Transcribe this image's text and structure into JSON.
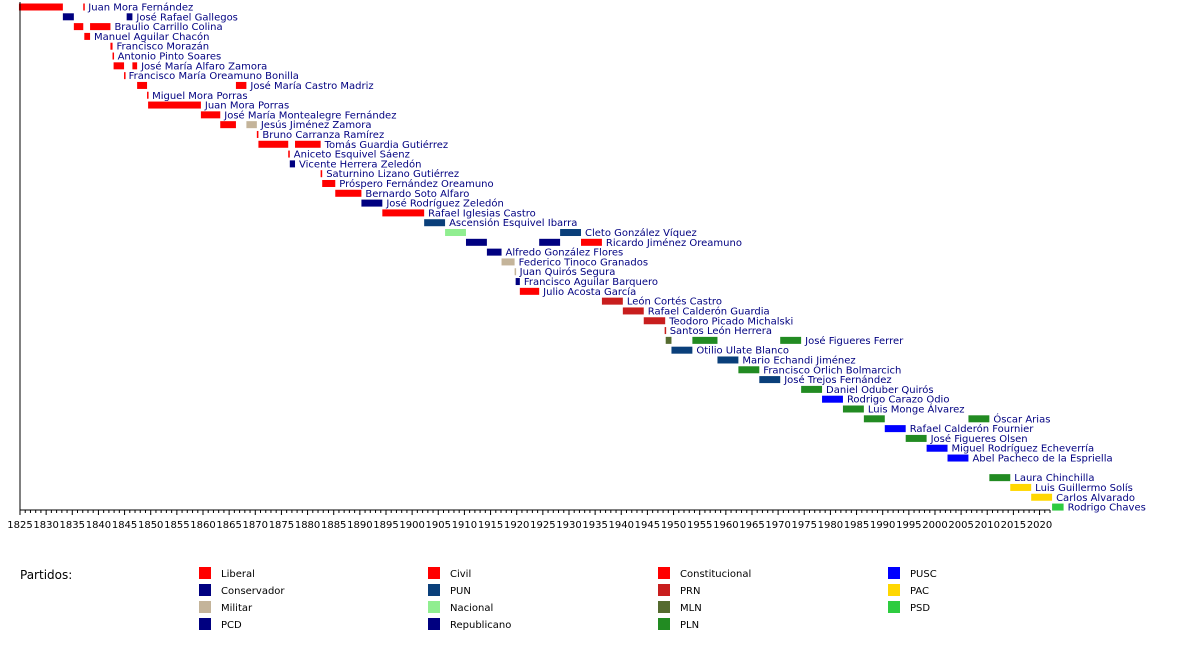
{
  "chart_data": {
    "type": "timeline",
    "x_axis": {
      "min": 1825,
      "max": 2022,
      "tick_labels": [
        "1825",
        "1830",
        "1835",
        "1840",
        "1845",
        "1850",
        "1855",
        "1860",
        "1865",
        "1870",
        "1875",
        "1880",
        "1885",
        "1890",
        "1895",
        "1900",
        "1905",
        "1910",
        "1915",
        "1920",
        "1925",
        "1930",
        "1935",
        "1940",
        "1945",
        "1950",
        "1955",
        "1960",
        "1965",
        "1970",
        "1975",
        "1980",
        "1985",
        "1990",
        "1995",
        "2000",
        "2005",
        "2010",
        "2015",
        "2020"
      ]
    },
    "legend_title": "Partidos:",
    "parties": [
      {
        "key": "liberal",
        "name": "Liberal",
        "color": "#ff0000"
      },
      {
        "key": "conservador",
        "name": "Conservador",
        "color": "#000080"
      },
      {
        "key": "militar",
        "name": "Militar",
        "color": "#c4b49a"
      },
      {
        "key": "pcd",
        "name": "PCD",
        "color": "#000080"
      },
      {
        "key": "civil",
        "name": "Civil",
        "color": "#ff0000"
      },
      {
        "key": "pun",
        "name": "PUN",
        "color": "#0a3f7a"
      },
      {
        "key": "nacional",
        "name": "Nacional",
        "color": "#90ee90"
      },
      {
        "key": "republicano",
        "name": "Republicano",
        "color": "#000080"
      },
      {
        "key": "constitucional",
        "name": "Constitucional",
        "color": "#ff0000"
      },
      {
        "key": "prn",
        "name": "PRN",
        "color": "#c81e1e"
      },
      {
        "key": "mln",
        "name": "MLN",
        "color": "#556b2f"
      },
      {
        "key": "pln",
        "name": "PLN",
        "color": "#228b22"
      },
      {
        "key": "pusc",
        "name": "PUSC",
        "color": "#0000ff"
      },
      {
        "key": "pac",
        "name": "PAC",
        "color": "#ffd700"
      },
      {
        "key": "psd",
        "name": "PSD",
        "color": "#2ecc40"
      }
    ],
    "rows": [
      {
        "label": "Juan Mora Fernández",
        "terms": [
          [
            1824.8,
            1833.2,
            "liberal"
          ],
          [
            1837.1,
            1837.3,
            "liberal"
          ]
        ]
      },
      {
        "label": "José Rafael Gallegos",
        "terms": [
          [
            1833.2,
            1835.3,
            "conservador"
          ],
          [
            1845.4,
            1846.5,
            "conservador"
          ]
        ]
      },
      {
        "label": "Braulio Carrillo Colina",
        "terms": [
          [
            1835.3,
            1837.1,
            "liberal"
          ],
          [
            1838.4,
            1842.3,
            "liberal"
          ]
        ]
      },
      {
        "label": "Manuel Aguilar Chacón",
        "terms": [
          [
            1837.3,
            1838.4,
            "liberal"
          ]
        ]
      },
      {
        "label": "Francisco Morazán",
        "terms": [
          [
            1842.3,
            1842.7,
            "liberal"
          ]
        ]
      },
      {
        "label": "Antonio Pinto Soares",
        "terms": [
          [
            1842.7,
            1842.9,
            "liberal"
          ]
        ]
      },
      {
        "label": "José María Alfaro Zamora",
        "terms": [
          [
            1842.9,
            1844.9,
            "liberal"
          ],
          [
            1846.5,
            1847.4,
            "liberal"
          ]
        ]
      },
      {
        "label": "Francisco María Oreamuno Bonilla",
        "terms": [
          [
            1844.9,
            1845.0,
            "liberal"
          ]
        ]
      },
      {
        "label": "José María Castro Madriz",
        "terms": [
          [
            1847.4,
            1849.3,
            "liberal"
          ],
          [
            1866.3,
            1868.3,
            "liberal"
          ]
        ]
      },
      {
        "label": "Miguel Mora Porras",
        "terms": [
          [
            1849.3,
            1849.5,
            "liberal"
          ]
        ]
      },
      {
        "label": "Juan Mora Porras",
        "terms": [
          [
            1849.5,
            1859.6,
            "liberal"
          ]
        ]
      },
      {
        "label": "José María Montealegre Fernández",
        "terms": [
          [
            1859.6,
            1863.3,
            "liberal"
          ]
        ]
      },
      {
        "label": "Jesús Jiménez Zamora",
        "terms": [
          [
            1863.3,
            1866.3,
            "liberal"
          ],
          [
            1868.3,
            1870.3,
            "militar"
          ]
        ]
      },
      {
        "label": "Bruno Carranza Ramírez",
        "terms": [
          [
            1870.3,
            1870.6,
            "liberal"
          ]
        ]
      },
      {
        "label": "Tomás Guardia Gutiérrez",
        "terms": [
          [
            1870.6,
            1876.3,
            "liberal"
          ],
          [
            1877.6,
            1882.5,
            "liberal"
          ]
        ]
      },
      {
        "label": "Aniceto Esquivel Sáenz",
        "terms": [
          [
            1876.3,
            1876.6,
            "liberal"
          ]
        ]
      },
      {
        "label": "Vicente Herrera Zeledón",
        "terms": [
          [
            1876.6,
            1877.6,
            "conservador"
          ]
        ]
      },
      {
        "label": "Saturnino Lizano Gutiérrez",
        "terms": [
          [
            1882.5,
            1882.8,
            "liberal"
          ]
        ]
      },
      {
        "label": "Próspero Fernández Oreamuno",
        "terms": [
          [
            1882.8,
            1885.3,
            "liberal"
          ]
        ]
      },
      {
        "label": "Bernardo Soto Alfaro",
        "terms": [
          [
            1885.3,
            1890.3,
            "liberal"
          ]
        ]
      },
      {
        "label": "José Rodríguez Zeledón",
        "terms": [
          [
            1890.3,
            1894.3,
            "conservador"
          ]
        ]
      },
      {
        "label": "Rafael Iglesias Castro",
        "terms": [
          [
            1894.3,
            1902.3,
            "civil"
          ]
        ]
      },
      {
        "label": "Ascensión Esquivel Ibarra",
        "terms": [
          [
            1902.3,
            1906.3,
            "pun"
          ]
        ]
      },
      {
        "label": "Cleto González Víquez",
        "terms": [
          [
            1906.3,
            1910.3,
            "nacional"
          ],
          [
            1928.3,
            1932.3,
            "pun"
          ]
        ]
      },
      {
        "label": "Ricardo Jiménez Oreamuno",
        "terms": [
          [
            1910.3,
            1914.3,
            "republicano"
          ],
          [
            1924.3,
            1928.3,
            "republicano"
          ],
          [
            1932.3,
            1936.3,
            "constitucional"
          ]
        ]
      },
      {
        "label": "Alfredo González Flores",
        "terms": [
          [
            1914.3,
            1917.1,
            "republicano"
          ]
        ]
      },
      {
        "label": "Federico Tinoco Granados",
        "terms": [
          [
            1917.1,
            1919.6,
            "militar"
          ]
        ]
      },
      {
        "label": "Juan Quirós Segura",
        "terms": [
          [
            1919.6,
            1919.8,
            "militar"
          ]
        ]
      },
      {
        "label": "Francisco Aguilar Barquero",
        "terms": [
          [
            1919.8,
            1920.6,
            "pcd"
          ]
        ]
      },
      {
        "label": "Julio Acosta García",
        "terms": [
          [
            1920.6,
            1924.3,
            "constitucional"
          ]
        ]
      },
      {
        "label": "León Cortés Castro",
        "terms": [
          [
            1936.3,
            1940.3,
            "prn"
          ]
        ]
      },
      {
        "label": "Rafael Calderón Guardia",
        "terms": [
          [
            1940.3,
            1944.3,
            "prn"
          ]
        ]
      },
      {
        "label": "Teodoro Picado Michalski",
        "terms": [
          [
            1944.3,
            1948.4,
            "prn"
          ]
        ]
      },
      {
        "label": "Santos León Herrera",
        "terms": [
          [
            1948.3,
            1948.5,
            "prn"
          ]
        ]
      },
      {
        "label": "José Figueres Ferrer",
        "terms": [
          [
            1948.5,
            1949.6,
            "mln"
          ],
          [
            1953.6,
            1958.4,
            "pln"
          ],
          [
            1970.4,
            1974.4,
            "pln"
          ]
        ]
      },
      {
        "label": "Otilio Ulate Blanco",
        "terms": [
          [
            1949.6,
            1953.6,
            "pun"
          ]
        ]
      },
      {
        "label": "Mario Echandi Jiménez",
        "terms": [
          [
            1958.4,
            1962.4,
            "pun"
          ]
        ]
      },
      {
        "label": "Francisco Orlich Bolmarcich",
        "terms": [
          [
            1962.4,
            1966.4,
            "pln"
          ]
        ]
      },
      {
        "label": "José Trejos Fernández",
        "terms": [
          [
            1966.4,
            1970.4,
            "pun"
          ]
        ]
      },
      {
        "label": "Daniel Oduber Quirós",
        "terms": [
          [
            1974.4,
            1978.4,
            "pln"
          ]
        ]
      },
      {
        "label": "Rodrigo Carazo Odio",
        "terms": [
          [
            1978.4,
            1982.4,
            "pusc"
          ]
        ]
      },
      {
        "label": "Luis Monge Álvarez",
        "terms": [
          [
            1982.4,
            1986.4,
            "pln"
          ]
        ]
      },
      {
        "label": "Óscar Arias",
        "terms": [
          [
            1986.4,
            1990.4,
            "pln"
          ],
          [
            2006.4,
            2010.4,
            "pln"
          ]
        ]
      },
      {
        "label": "Rafael Calderón Fournier",
        "terms": [
          [
            1990.4,
            1994.4,
            "pusc"
          ]
        ]
      },
      {
        "label": "José Figueres Olsen",
        "terms": [
          [
            1994.4,
            1998.4,
            "pln"
          ]
        ]
      },
      {
        "label": "Miguel Rodríguez Echeverría",
        "terms": [
          [
            1998.4,
            2002.4,
            "pusc"
          ]
        ]
      },
      {
        "label": "Abel Pacheco de la Espriella",
        "terms": [
          [
            2002.4,
            2006.4,
            "pusc"
          ]
        ]
      },
      {
        "label": "",
        "terms": []
      },
      {
        "label": "Laura Chinchilla",
        "terms": [
          [
            2010.4,
            2014.4,
            "pln"
          ]
        ]
      },
      {
        "label": "Luis Guillermo Solís",
        "terms": [
          [
            2014.4,
            2018.4,
            "pac"
          ]
        ]
      },
      {
        "label": "Carlos Alvarado",
        "terms": [
          [
            2018.4,
            2022.4,
            "pac"
          ]
        ]
      },
      {
        "label": "Rodrigo Chaves",
        "terms": [
          [
            2022.4,
            2024.6,
            "psd"
          ]
        ]
      }
    ]
  }
}
